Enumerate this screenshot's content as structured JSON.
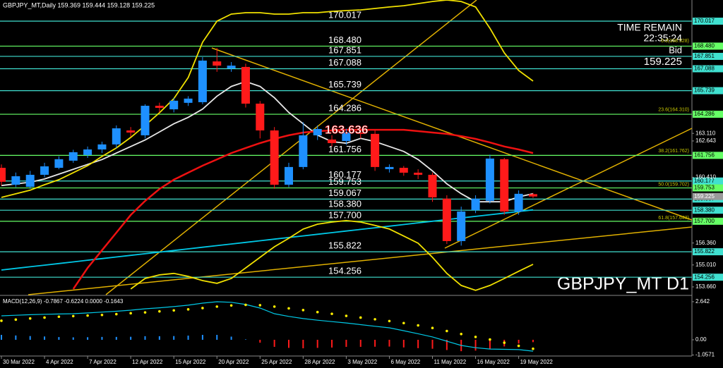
{
  "header": "GBPJPY_MT,Daily  159.369 159.444 159.128 159.225",
  "info": {
    "time_label": "TIME REMAIN",
    "time": "22:35:24",
    "bid_label": "Bid"
  },
  "watermark": "GBPJPY_MT D1",
  "chart_data": [
    {
      "type": "candlestick",
      "categories": [
        "30 Mar 2022",
        null,
        null,
        "4 Apr 2022",
        null,
        null,
        "7 Apr 2022",
        null,
        null,
        "12 Apr 2022",
        null,
        null,
        "15 Apr 2022",
        null,
        null,
        "20 Apr 2022",
        null,
        null,
        "25 Apr 2022",
        null,
        null,
        "28 Apr 2022",
        null,
        null,
        "3 May 2022",
        null,
        null,
        "6 May 2022",
        null,
        null,
        "11 May 2022",
        null,
        null,
        "16 May 2022",
        null,
        null,
        "19 May 2022",
        null
      ],
      "open": [
        160.99,
        159.95,
        159.82,
        160.56,
        160.99,
        161.43,
        161.78,
        162.12,
        162.43,
        163.29,
        162.99,
        164.81,
        164.59,
        164.99,
        165.03,
        167.54,
        167.11,
        167.2,
        164.94,
        163.29,
        159.95,
        161.04,
        162.99,
        162.73,
        162.64,
        163.16,
        163.08,
        160.91,
        160.99,
        160.69,
        160.56,
        159.09,
        156.48,
        158.39,
        158.96,
        161.52,
        158.3,
        159.369
      ],
      "high": [
        161.2,
        160.7,
        160.8,
        161.3,
        161.7,
        162.1,
        162.3,
        162.6,
        163.6,
        163.5,
        164.9,
        165.0,
        165.3,
        165.4,
        167.8,
        168.37,
        167.5,
        167.4,
        165.1,
        163.5,
        161.3,
        163.8,
        163.6,
        163.0,
        163.4,
        163.4,
        163.3,
        161.2,
        161.1,
        160.9,
        160.7,
        159.3,
        158.6,
        159.3,
        161.8,
        161.6,
        159.6,
        159.444
      ],
      "low": [
        159.9,
        159.8,
        159.7,
        160.4,
        160.9,
        161.3,
        161.6,
        161.9,
        162.2,
        162.9,
        162.8,
        164.4,
        164.4,
        164.8,
        164.9,
        166.9,
        166.9,
        164.7,
        162.8,
        159.7,
        159.8,
        160.9,
        162.7,
        162.3,
        162.4,
        162.8,
        160.8,
        160.7,
        160.5,
        160.3,
        158.9,
        156.3,
        156.2,
        158.2,
        158.8,
        158.1,
        158.1,
        159.128
      ],
      "close": [
        160.13,
        160.47,
        160.56,
        161.08,
        161.52,
        161.95,
        162.12,
        162.43,
        163.42,
        163.16,
        164.81,
        164.68,
        165.12,
        165.25,
        167.59,
        167.28,
        167.28,
        164.94,
        163.29,
        159.95,
        161.04,
        162.99,
        163.38,
        162.51,
        163.16,
        163.08,
        161.04,
        161.04,
        160.69,
        160.56,
        159.17,
        156.48,
        158.3,
        159.09,
        161.56,
        158.3,
        159.39,
        159.225
      ],
      "up_color": "#1e90ff",
      "down_color": "#ff1a1a",
      "overlays": [
        {
          "color": "#00c8e6",
          "values": [
            154.7,
            154.8,
            154.9,
            155.0,
            155.1,
            155.2,
            155.3,
            155.4,
            155.5,
            155.6,
            155.7,
            155.8,
            155.9,
            156.0,
            156.1,
            156.2,
            156.3,
            156.4,
            156.5,
            156.6,
            156.7,
            156.8,
            156.9,
            157.0,
            157.1,
            157.2,
            157.3,
            157.4,
            157.5,
            157.6,
            157.7,
            157.8,
            157.9,
            158.0,
            158.1,
            158.2,
            158.3,
            158.4
          ]
        },
        {
          "color": "#e8e8e8",
          "values": [
            159.9,
            160.0,
            160.1,
            160.3,
            160.6,
            160.9,
            161.2,
            161.5,
            161.9,
            162.3,
            162.7,
            163.2,
            163.7,
            164.1,
            164.6,
            165.4,
            166.0,
            166.3,
            166.0,
            165.3,
            164.4,
            163.7,
            163.0,
            162.6,
            162.5,
            162.8,
            162.6,
            162.3,
            162.0,
            161.5,
            160.8,
            160.0,
            159.4,
            158.9,
            158.9,
            158.9,
            159.2,
            159.4
          ]
        },
        {
          "color": "#ee1111",
          "values": [
            null,
            null,
            null,
            null,
            null,
            153.53,
            154.83,
            155.92,
            157.0,
            158.09,
            158.95,
            159.69,
            160.26,
            160.69,
            161.12,
            161.51,
            161.9,
            162.21,
            162.51,
            162.77,
            162.99,
            163.16,
            163.25,
            163.29,
            163.33,
            163.33,
            163.33,
            163.33,
            163.33,
            163.25,
            163.16,
            163.08,
            162.94,
            162.77,
            162.55,
            162.3,
            162.12,
            161.9
          ]
        },
        {
          "color": "#f0e000",
          "values": [
            159.17,
            159.39,
            159.61,
            159.95,
            160.26,
            160.69,
            161.12,
            161.69,
            162.21,
            162.86,
            163.6,
            164.38,
            165.25,
            166.55,
            168.72,
            170.02,
            170.45,
            170.54,
            170.54,
            170.45,
            170.45,
            170.54,
            170.54,
            170.62,
            170.67,
            170.71,
            170.8,
            170.89,
            170.97,
            171.1,
            171.23,
            171.32,
            171.23,
            170.89,
            169.58,
            168.06,
            166.98,
            166.33
          ]
        },
        {
          "color": "#f0e000",
          "values": [
            null,
            null,
            null,
            null,
            null,
            null,
            null,
            null,
            null,
            153.53,
            154.18,
            154.4,
            154.49,
            154.31,
            154.05,
            153.88,
            154.18,
            154.83,
            155.48,
            156.13,
            156.65,
            157.22,
            157.52,
            157.65,
            157.74,
            157.65,
            157.44,
            157.22,
            156.79,
            156.35,
            155.48,
            154.49,
            153.75,
            153.45,
            153.75,
            154.18,
            154.62,
            155.05
          ]
        }
      ],
      "ylim": [
        153.18,
        171.32
      ],
      "levels": [
        {
          "value": 170.017,
          "color": "#40e0d0"
        },
        {
          "value": 168.48,
          "label": "168.480",
          "color": "#66ff66"
        },
        {
          "value": 167.851,
          "color": "#40e0d0"
        },
        {
          "value": 167.088,
          "color": "#40e0d0"
        },
        {
          "value": 165.739,
          "color": "#40e0d0"
        },
        {
          "value": 164.286,
          "color": "#66ff66"
        },
        {
          "value": 161.756,
          "color": "#66ff66"
        },
        {
          "value": 160.177,
          "color": "#40e0d0"
        },
        {
          "value": 159.753,
          "color": "#66ff66"
        },
        {
          "value": 159.067,
          "color": "#40e0d0"
        },
        {
          "value": 158.38,
          "label": "158.380",
          "color": "#40e0d0"
        },
        {
          "value": 157.7,
          "label": "157.700",
          "color": "#66ff66"
        },
        {
          "value": 155.822,
          "color": "#40e0d0"
        },
        {
          "value": 154.256,
          "color": "#40e0d0"
        }
      ],
      "yticks": [
        {
          "value": 163.11,
          "label": "163.110"
        },
        162.643,
        {
          "value": 160.41,
          "label": "160.410"
        },
        {
          "value": 156.36,
          "label": "156.360"
        },
        {
          "value": 155.01,
          "label": "155.010"
        },
        {
          "value": 153.66,
          "label": "153.660"
        }
      ],
      "fib_labels": [
        {
          "value": 168.528,
          "label": "0.0(168.528)"
        },
        {
          "value": 164.31,
          "label": "23.6(164.310)"
        },
        {
          "value": 161.762,
          "label": "38.2(161.762)"
        },
        {
          "value": 159.702,
          "label": "50.0(159.702)"
        },
        {
          "value": 157.643,
          "label": "61.8(157.643)"
        }
      ],
      "price_tag": 163.636
    },
    {
      "type": "macd",
      "title": "MACD(12,26,9) -0.7867 -0.6224 0.0000 -0.1643",
      "macd": [
        1.66,
        1.7,
        1.74,
        1.77,
        1.79,
        1.81,
        1.86,
        1.92,
        1.98,
        2.05,
        2.15,
        2.22,
        2.3,
        2.4,
        2.54,
        2.64,
        2.6,
        2.45,
        2.2,
        1.81,
        1.62,
        1.47,
        1.36,
        1.26,
        1.17,
        1.05,
        0.94,
        0.83,
        0.63,
        0.42,
        0.2,
        -0.1,
        -0.39,
        -0.55,
        -0.64,
        -0.66,
        -0.68,
        -0.7867
      ],
      "signal": [
        1.32,
        1.4,
        1.48,
        1.54,
        1.6,
        1.64,
        1.68,
        1.72,
        1.78,
        1.84,
        1.9,
        1.97,
        2.04,
        2.11,
        2.2,
        2.3,
        2.38,
        2.42,
        2.4,
        2.3,
        2.18,
        2.06,
        1.92,
        1.8,
        1.66,
        1.54,
        1.42,
        1.3,
        1.16,
        1.0,
        0.82,
        0.61,
        0.4,
        0.2,
        0.02,
        -0.2,
        -0.42,
        -0.6224
      ],
      "histogram": [
        0.34,
        0.3,
        0.26,
        0.23,
        0.19,
        0.17,
        0.18,
        0.2,
        0.2,
        0.21,
        0.25,
        0.25,
        0.26,
        0.29,
        0.34,
        0.34,
        0.22,
        0.03,
        -0.2,
        -0.49,
        -0.56,
        -0.59,
        -0.56,
        -0.54,
        -0.49,
        -0.49,
        -0.48,
        -0.47,
        -0.53,
        -0.58,
        -0.62,
        -0.71,
        -0.79,
        -0.75,
        -0.66,
        -0.46,
        -0.26,
        -0.1643
      ],
      "macd_color": "#00c8e6",
      "signal_color": "#ffee00",
      "up_color": "#1e90ff",
      "down_color": "#ff1a1a",
      "ylim": [
        -1.125,
        3.03
      ],
      "yticks": [
        2.642,
        {
          "value": 0,
          "label": "0.00"
        },
        -1.0571
      ]
    }
  ]
}
